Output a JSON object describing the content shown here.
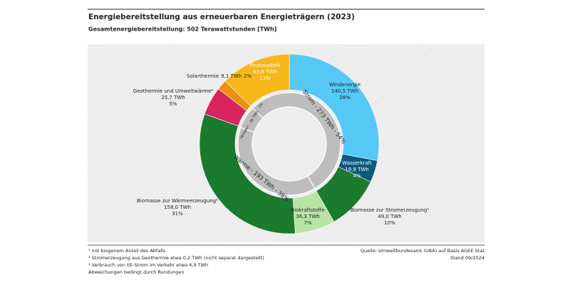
{
  "chart_data": {
    "type": "donut",
    "title": "Energiebereitstellung aus erneuerbaren Energieträgern (2023)",
    "subtitle": "Gesamtenergiebereitstellung: 502 Terawattstunden [TWh]",
    "categories": [
      "Windenergie",
      "Wasserkraft",
      "Biomasse zur Stromerzeugung¹",
      "Biokraftstoffe",
      "Biomasse zur Wärmeerzeugung¹",
      "Geothermie und Umweltwärme²",
      "Solarthermie",
      "Photovoltaik"
    ],
    "values": [
      140.5,
      19.9,
      49.0,
      36.3,
      158.0,
      25.7,
      9.1,
      63.6
    ],
    "value_labels": [
      "140,5 TWh",
      "19,9 TWh",
      "49,0 TWh",
      "36,3 TWh",
      "158,0 TWh",
      "25,7 TWh",
      "9,1 TWh",
      "63,6 TWh"
    ],
    "shares": [
      28,
      4,
      10,
      7,
      31,
      5,
      2,
      13
    ],
    "share_labels": [
      "28%",
      "4%",
      "10%",
      "7%",
      "31%",
      "5%",
      "2%",
      "13%"
    ],
    "colors": [
      "#55c8f5",
      "#0e5a7e",
      "#1a7a2e",
      "#b9e3a6",
      "#1a7a2e",
      "#d6245e",
      "#e8920e",
      "#f7b718"
    ],
    "inner": {
      "categories": [
        "Strom",
        "Wärme",
        "Verkehr³"
      ],
      "values": [
        273,
        193,
        36
      ],
      "value_labels": [
        "Strom - 273 TWh - 54%",
        "Wärme - 193 TWh - 38%",
        "Verkehr³ - 36 TWh - 7%"
      ],
      "color": "#bdbdbd"
    },
    "footnotes": [
      "¹ mit biogenem Anteil des Abfalls",
      "² Stromerzeugung aus Geothermie etwa 0,2 TWh (nicht separat dargestellt)",
      "³ Verbrauch von EE-Strom im Verkehr etwa  4,9 TWh",
      "Abweichungen bedingt durch Rundungen"
    ],
    "source": "Quelle: Umweltbundesamt (UBA) auf Basis AGEE-Stat",
    "date": "Stand 09/2024"
  }
}
